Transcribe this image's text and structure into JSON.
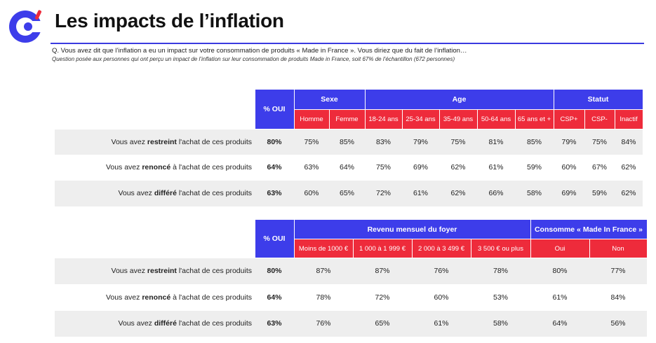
{
  "header": {
    "title": "Les impacts de l’inflation",
    "question": "Q. Vous avez dit que l’inflation a eu un impact sur votre consommation de produits « Made in France ». Vous diriez que du fait de l’inflation…",
    "note": "Question posée aux personnes qui ont perçu un impact de l’inflation sur leur consommation de produits Made in France, soit 67% de l’échantillon (672 personnes)"
  },
  "colors": {
    "header_blue": "#3d3dea",
    "header_red": "#ee2b3b",
    "row_shade": "#eeeeee"
  },
  "row_labels": [
    {
      "pre": "Vous avez ",
      "bold": "restreint",
      "post": " l'achat de ces produits"
    },
    {
      "pre": "Vous avez ",
      "bold": "renoncé",
      "post": " à l'achat de ces produits"
    },
    {
      "pre": "Vous avez ",
      "bold": "différé",
      "post": " l'achat de ces produits"
    }
  ],
  "table1": {
    "pct_oui_label": "% OUI",
    "groups": [
      "Sexe",
      "Age",
      "Statut"
    ],
    "columns": [
      "Homme",
      "Femme",
      "18-24 ans",
      "25-34 ans",
      "35-49 ans",
      "50-64 ans",
      "65 ans et +",
      "CSP+",
      "CSP-",
      "Inactif"
    ],
    "rows": [
      {
        "oui": "80%",
        "values": [
          "75%",
          "85%",
          "83%",
          "79%",
          "75%",
          "81%",
          "85%",
          "79%",
          "75%",
          "84%"
        ]
      },
      {
        "oui": "64%",
        "values": [
          "63%",
          "64%",
          "75%",
          "69%",
          "62%",
          "61%",
          "59%",
          "60%",
          "67%",
          "62%"
        ]
      },
      {
        "oui": "63%",
        "values": [
          "60%",
          "65%",
          "72%",
          "61%",
          "62%",
          "66%",
          "58%",
          "69%",
          "59%",
          "62%"
        ]
      }
    ]
  },
  "table2": {
    "pct_oui_label": "% OUI",
    "groups": [
      "Revenu mensuel du foyer",
      "Consomme « Made In France »"
    ],
    "columns": [
      "Moins de 1000 €",
      "1 000 à 1 999 €",
      "2 000 à 3 499 €",
      "3 500 € ou plus",
      "Oui",
      "Non"
    ],
    "rows": [
      {
        "oui": "80%",
        "values": [
          "87%",
          "87%",
          "76%",
          "78%",
          "80%",
          "77%"
        ]
      },
      {
        "oui": "64%",
        "values": [
          "78%",
          "72%",
          "60%",
          "53%",
          "61%",
          "84%"
        ]
      },
      {
        "oui": "63%",
        "values": [
          "76%",
          "65%",
          "61%",
          "58%",
          "64%",
          "56%"
        ]
      }
    ]
  }
}
